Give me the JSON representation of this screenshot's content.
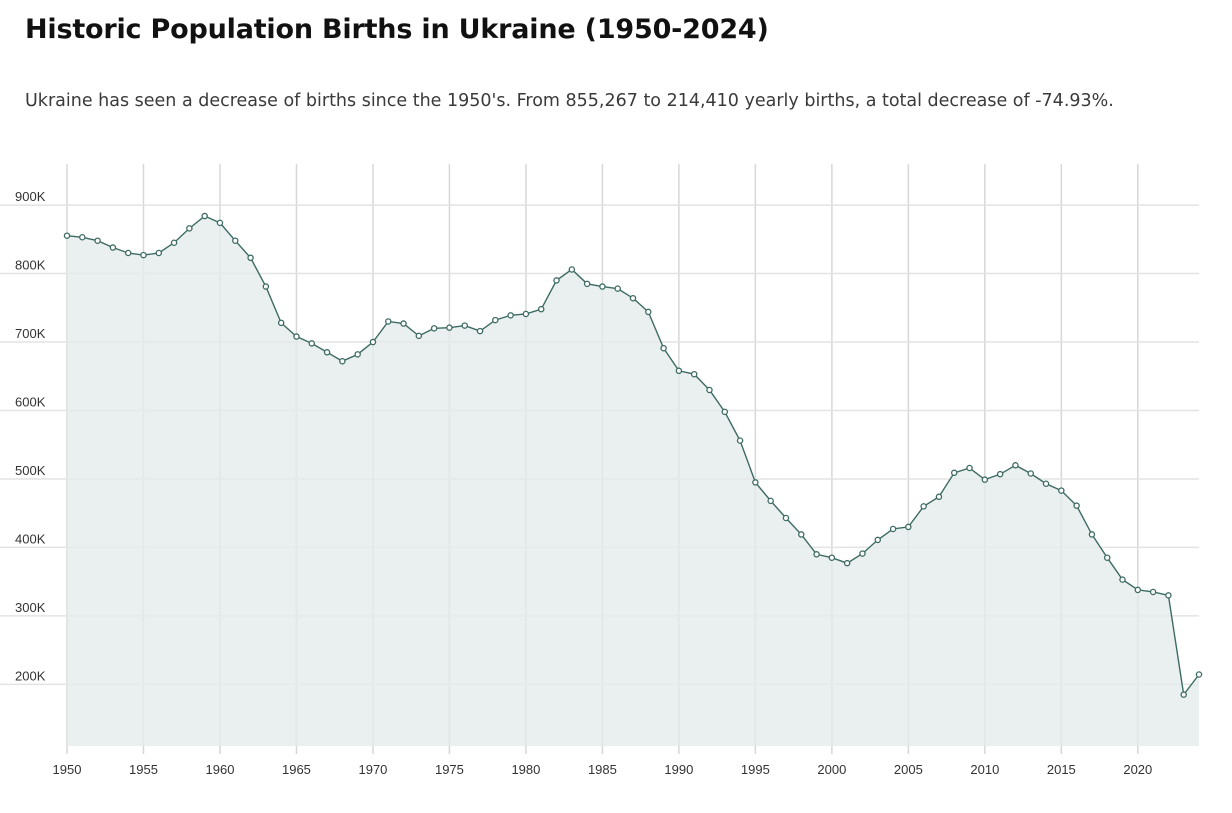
{
  "page": {
    "title": "Historic Population Births in Ukraine (1950-2024)",
    "subtitle": "Ukraine has seen a decrease of births since the 1950's. From 855,267 to 214,410 yearly births, a total decrease of -74.93%."
  },
  "chart_data": {
    "type": "area",
    "title": "",
    "xlabel": "",
    "ylabel": "",
    "x": [
      1950,
      1951,
      1952,
      1953,
      1954,
      1955,
      1956,
      1957,
      1958,
      1959,
      1960,
      1961,
      1962,
      1963,
      1964,
      1965,
      1966,
      1967,
      1968,
      1969,
      1970,
      1971,
      1972,
      1973,
      1974,
      1975,
      1976,
      1977,
      1978,
      1979,
      1980,
      1981,
      1982,
      1983,
      1984,
      1985,
      1986,
      1987,
      1988,
      1989,
      1990,
      1991,
      1992,
      1993,
      1994,
      1995,
      1996,
      1997,
      1998,
      1999,
      2000,
      2001,
      2002,
      2003,
      2004,
      2005,
      2006,
      2007,
      2008,
      2009,
      2010,
      2011,
      2012,
      2013,
      2014,
      2015,
      2016,
      2017,
      2018,
      2019,
      2020,
      2021,
      2022,
      2023,
      2024
    ],
    "series": [
      {
        "values": [
          855267,
          853000,
          848000,
          838000,
          830000,
          827000,
          830000,
          845000,
          866000,
          884000,
          874000,
          848000,
          823000,
          781000,
          728000,
          708000,
          698000,
          685000,
          672000,
          682000,
          700000,
          730000,
          727000,
          709000,
          720000,
          721000,
          724000,
          716000,
          732000,
          739000,
          741000,
          748000,
          790000,
          806000,
          785000,
          781000,
          778000,
          764000,
          744000,
          691000,
          658000,
          653000,
          630000,
          598000,
          556000,
          495000,
          468000,
          443000,
          419000,
          390000,
          385000,
          377000,
          391000,
          411000,
          427000,
          430000,
          460000,
          474000,
          509000,
          516000,
          499000,
          507000,
          520000,
          508000,
          493000,
          483000,
          461000,
          419000,
          385000,
          353000,
          338000,
          335000,
          330000,
          185000,
          214410
        ],
        "color": "#3d6b63",
        "fill": "#e4eaea"
      }
    ],
    "xlim": [
      1950,
      2024
    ],
    "ylim": [
      110000,
      960000
    ],
    "x_ticks": [
      1950,
      1955,
      1960,
      1965,
      1970,
      1975,
      1980,
      1985,
      1990,
      1995,
      2000,
      2005,
      2010,
      2015,
      2020
    ],
    "x_tick_labels": [
      "1950",
      "1955",
      "1960",
      "1965",
      "1970",
      "1975",
      "1980",
      "1985",
      "1990",
      "1995",
      "2000",
      "2005",
      "2010",
      "2015",
      "2020"
    ],
    "y_ticks": [
      200000,
      300000,
      400000,
      500000,
      600000,
      700000,
      800000,
      900000
    ],
    "y_tick_labels": [
      "200K",
      "300K",
      "400K",
      "500K",
      "600K",
      "700K",
      "800K",
      "900K"
    ],
    "grid": true,
    "legend": "none"
  }
}
